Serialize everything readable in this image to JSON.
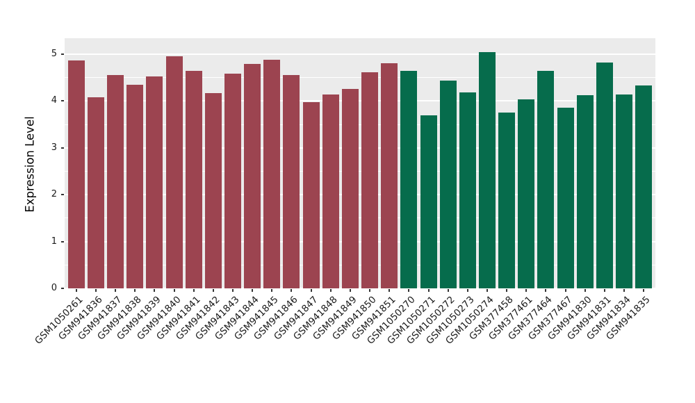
{
  "chart_data": {
    "type": "bar",
    "title": "",
    "xlabel": "",
    "ylabel": "Expression Level",
    "ylim": [
      0,
      5.34
    ],
    "yticks": [
      0,
      1,
      2,
      3,
      4,
      5
    ],
    "minor_grid_step": 0.5,
    "legend_position": "none",
    "panel_background": "#EBEBEB",
    "grid_color": "#FFFFFF",
    "tick_mark_color": "#333333",
    "axis_text_color": "#1a1a1a",
    "categories": [
      "GSM1050261",
      "GSM941836",
      "GSM941837",
      "GSM941838",
      "GSM941839",
      "GSM941840",
      "GSM941841",
      "GSM941842",
      "GSM941843",
      "GSM941844",
      "GSM941845",
      "GSM941846",
      "GSM941847",
      "GSM941848",
      "GSM941849",
      "GSM941850",
      "GSM941851",
      "GSM1050270",
      "GSM1050271",
      "GSM1050272",
      "GSM1050273",
      "GSM1050274",
      "GSM377458",
      "GSM377461",
      "GSM377464",
      "GSM377467",
      "GSM941830",
      "GSM941831",
      "GSM941834",
      "GSM941835"
    ],
    "values": [
      4.86,
      4.08,
      4.55,
      4.34,
      4.53,
      4.96,
      4.64,
      4.17,
      4.58,
      4.79,
      4.88,
      4.56,
      3.97,
      4.14,
      4.26,
      4.61,
      4.81,
      4.64,
      3.7,
      4.43,
      4.19,
      5.05,
      3.76,
      4.03,
      4.65,
      3.86,
      4.13,
      4.82,
      4.14,
      4.33
    ],
    "color_groups": [
      {
        "color": "#9C4450",
        "bar_count": 17
      },
      {
        "color": "#066C4C",
        "bar_count": 13
      }
    ]
  }
}
